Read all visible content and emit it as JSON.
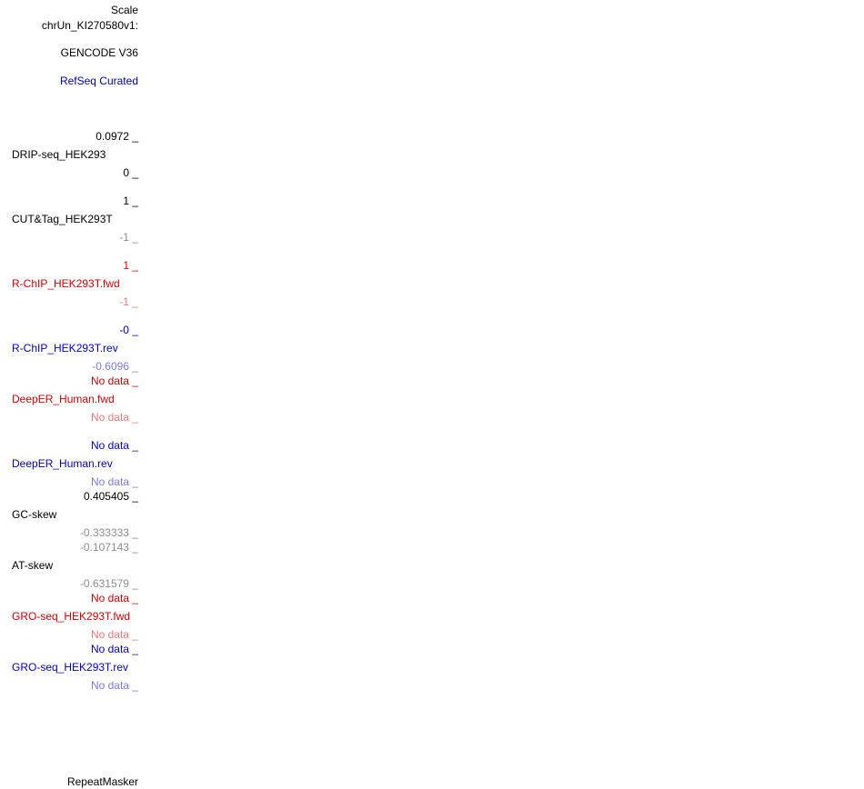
{
  "header": {
    "scale_label": "Scale",
    "chrom_label": "chrUn_KI270580v1:"
  },
  "tracks": {
    "gencode": {
      "label": "GENCODE V36"
    },
    "refseq": {
      "label": "RefSeq Curated",
      "color": "#0000a0"
    },
    "drip_seq": {
      "name": "DRIP-seq_HEK293",
      "max": "0.0972 _",
      "min": "0 _"
    },
    "cut_tag": {
      "name": "CUT&Tag_HEK293T",
      "max": "1 _",
      "min": "-1 _"
    },
    "rchip_fwd": {
      "name": "R-ChIP_HEK293T.fwd",
      "max": "1 _",
      "min": "-1 _",
      "color": "#d40000",
      "light_color": "#e87a7a"
    },
    "rchip_rev": {
      "name": "R-ChIP_HEK293T.rev",
      "max": "-0 _",
      "min": "-0.6096 _",
      "color": "#0000c0",
      "light_color": "#7a7ae8"
    },
    "deeper_fwd": {
      "name": "DeepER_Human.fwd",
      "max": "No data _",
      "min": "No data _"
    },
    "deeper_rev": {
      "name": "DeepER_Human.rev",
      "max": "No data _",
      "min": "No data _"
    },
    "gc_skew": {
      "name": "GC-skew",
      "max": "0.405405 _",
      "min": "-0.333333 _"
    },
    "at_skew": {
      "name": "AT-skew",
      "max": "-0.107143 _",
      "min": "-0.631579 _"
    },
    "gro_fwd": {
      "name": "GRO-seq_HEK293T.fwd",
      "max": "No data _",
      "min": "No data _"
    },
    "gro_rev": {
      "name": "GRO-seq_HEK293T.rev",
      "max": "No data _",
      "min": "No data _"
    },
    "repeatmasker": {
      "label": "RepeatMasker"
    }
  },
  "colors": {
    "black": "#000000",
    "gray": "#8c8c8c",
    "red": "#d40000",
    "light_red": "#e87a7a",
    "blue": "#0000c0",
    "light_blue": "#7a7ae8"
  }
}
